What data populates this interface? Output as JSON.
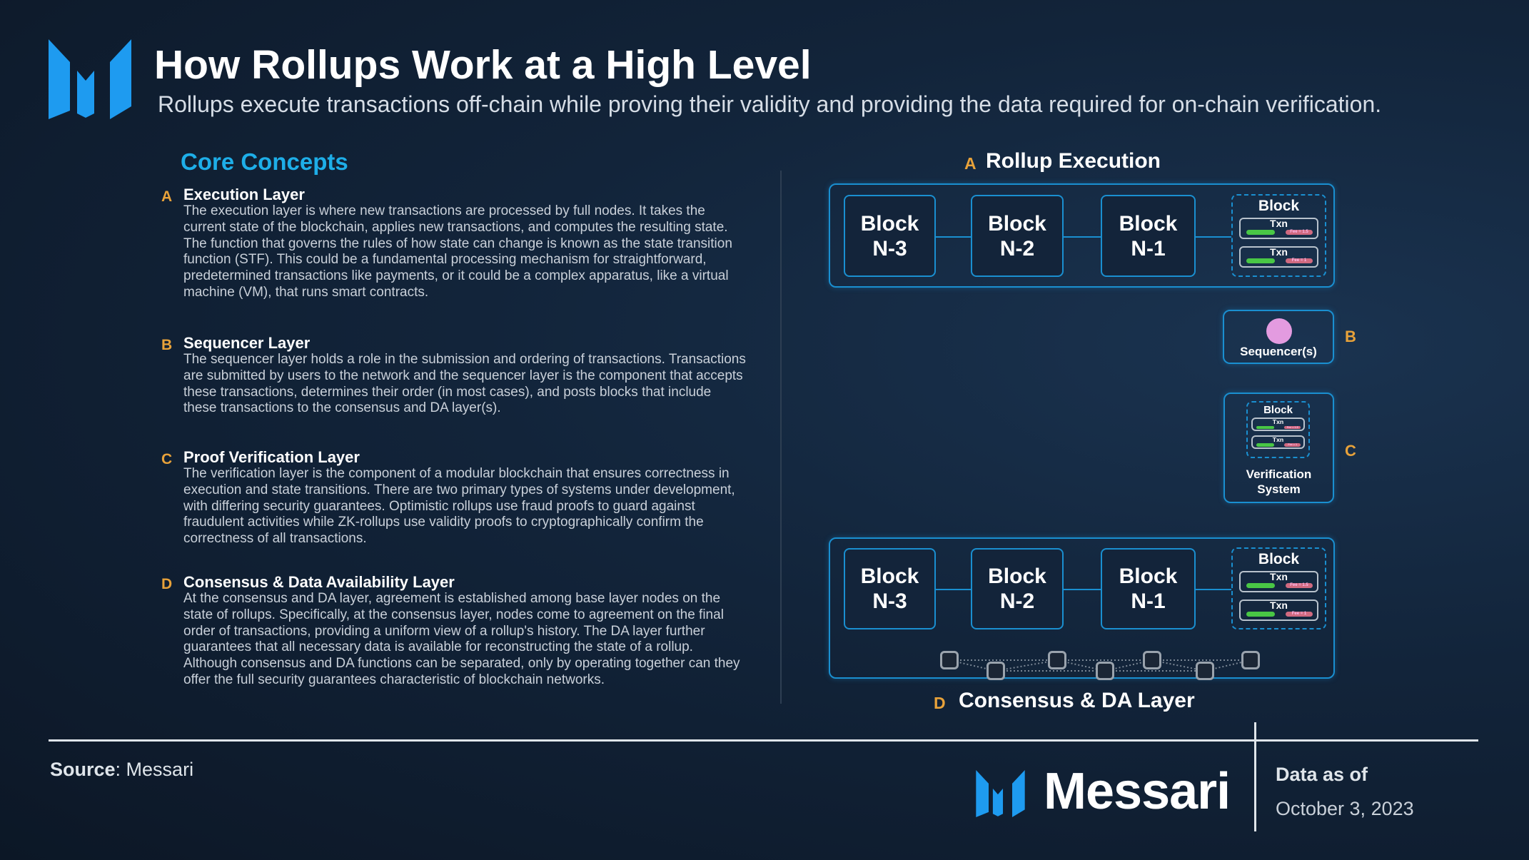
{
  "header": {
    "title": "How Rollups Work at a High Level",
    "subtitle": "Rollups execute transactions off-chain while proving their validity and providing the data required for on-chain verification."
  },
  "core_concepts": {
    "heading": "Core Concepts",
    "sections": [
      {
        "letter": "A",
        "title": "Execution Layer",
        "body": "The execution layer is where new transactions are processed by full nodes. It takes the current state of the blockchain, applies new transactions, and computes the resulting state. The function that governs the rules of how state can change is known as the state transition function (STF). This could be a fundamental processing mechanism for straightforward, predetermined transactions like payments, or it could be a complex apparatus, like a virtual machine (VM), that runs smart contracts."
      },
      {
        "letter": "B",
        "title": "Sequencer Layer",
        "body": "The sequencer layer holds a role in the submission and ordering of transactions. Transactions are submitted by users to the network and the sequencer layer is the component that accepts these transactions, determines their order (in most cases), and posts blocks that include these transactions to the consensus and DA layer(s)."
      },
      {
        "letter": "C",
        "title": "Proof Verification Layer",
        "body": "The verification layer is the component of a modular blockchain that ensures correctness in execution and state transitions. There are two primary types of systems under development, with differing security guarantees. Optimistic rollups use fraud proofs to guard against fraudulent activities while ZK-rollups use validity proofs to cryptographically confirm the correctness of all transactions."
      },
      {
        "letter": "D",
        "title": "Consensus & Data Availability Layer",
        "body": "At the consensus and DA layer, agreement is established among base layer nodes on the state of rollups. Specifically, at the consensus layer, nodes come to agreement on the final order of transactions, providing a uniform view of a rollup's history. The DA layer further guarantees that all necessary data is available for reconstructing the state of a rollup. Although consensus and DA functions can be separated, only by operating together can they offer the full security guarantees characteristic of blockchain networks."
      }
    ]
  },
  "diagram": {
    "execution": {
      "letter": "A",
      "label": "Rollup Execution"
    },
    "blocks": [
      "Block\nN-3",
      "Block\nN-2",
      "Block\nN-1"
    ],
    "pending_block": {
      "label": "Block",
      "txns": [
        {
          "label": "Txn",
          "fee": "Fee = 1.5"
        },
        {
          "label": "Txn",
          "fee": "Fee = 1"
        }
      ]
    },
    "sequencer": {
      "letter": "B",
      "label": "Sequencer(s)",
      "dot_color": "#e39be0"
    },
    "verification": {
      "letter": "C",
      "label": "Verification\nSystem"
    },
    "consensus": {
      "letter": "D",
      "label": "Consensus & DA Layer"
    }
  },
  "footer": {
    "source_label": "Source",
    "source_value": ": Messari",
    "brand": "Messari",
    "data_as_of": "Data as of",
    "date": "October 3, 2023"
  },
  "colors": {
    "brand_blue": "#1e9bf0",
    "accent": "#1eaee8",
    "letter": "#e8a23a"
  }
}
